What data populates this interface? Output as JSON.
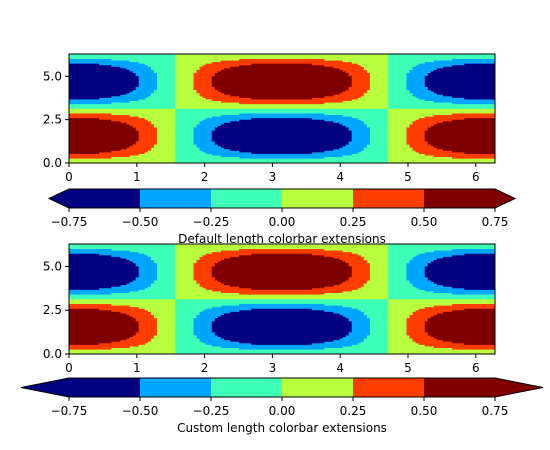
{
  "chart_data": [
    {
      "type": "heatmap",
      "description": "Filled contour plot of cos(x)*sin(y)... quantized into 6 levels",
      "xlim": [
        0,
        6.2832
      ],
      "ylim": [
        0,
        6.2832
      ],
      "x_ticks": [
        0,
        1,
        2,
        3,
        4,
        5,
        6
      ],
      "y_ticks": [
        0.0,
        2.5,
        5.0
      ],
      "x_tick_labels": [
        "0",
        "1",
        "2",
        "3",
        "4",
        "5",
        "6"
      ],
      "y_tick_labels": [
        "0.0",
        "2.5",
        "5.0"
      ],
      "levels": [
        -0.75,
        -0.5,
        -0.25,
        0.0,
        0.25,
        0.5,
        0.75
      ],
      "colorbar": {
        "orientation": "horizontal",
        "extend": "both",
        "extend_length": "default",
        "tick_labels": [
          "−0.75",
          "−0.50",
          "−0.25",
          "0.00",
          "0.25",
          "0.50",
          "0.75"
        ],
        "label": "Default length colorbar extensions"
      }
    },
    {
      "type": "heatmap",
      "xlim": [
        0,
        6.2832
      ],
      "ylim": [
        0,
        6.2832
      ],
      "x_ticks": [
        0,
        1,
        2,
        3,
        4,
        5,
        6
      ],
      "y_ticks": [
        0.0,
        2.5,
        5.0
      ],
      "x_tick_labels": [
        "0",
        "1",
        "2",
        "3",
        "4",
        "5",
        "6"
      ],
      "y_tick_labels": [
        "0.0",
        "2.5",
        "5.0"
      ],
      "levels": [
        -0.75,
        -0.5,
        -0.25,
        0.0,
        0.25,
        0.5,
        0.75
      ],
      "colorbar": {
        "orientation": "horizontal",
        "extend": "both",
        "extend_length": "custom",
        "tick_labels": [
          "−0.75",
          "−0.50",
          "−0.25",
          "0.00",
          "0.25",
          "0.50",
          "0.75"
        ],
        "label": "Custom length colorbar extensions"
      }
    }
  ],
  "colors": {
    "below_min": "#000080",
    "bands": [
      "#000080",
      "#00A6FF",
      "#3EFFB8",
      "#B8FF3E",
      "#FF3D00",
      "#800000"
    ],
    "above_max": "#800000"
  }
}
